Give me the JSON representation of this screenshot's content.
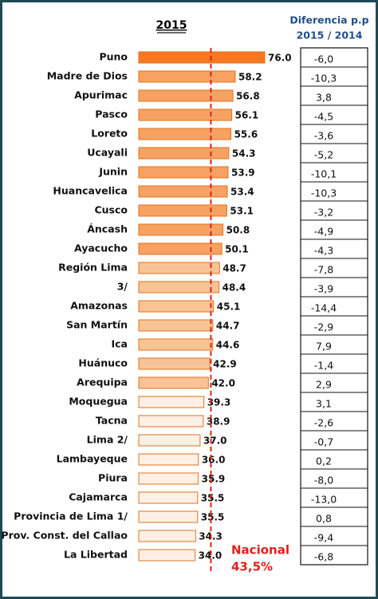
{
  "chart_data": {
    "type": "bar",
    "title": "2015",
    "categories": [
      "Puno",
      "Madre de Dios",
      "Apurimac",
      "Pasco",
      "Loreto",
      "Ucayali",
      "Junin",
      "Huancavelica",
      "Cusco",
      "Áncash",
      "Ayacucho",
      "Región Lima",
      "3/",
      "Amazonas",
      "San Martín",
      "Ica",
      "Huánuco",
      "Arequipa",
      "Moquegua",
      "Tacna",
      "Lima 2/",
      "Lambayeque",
      "Piura",
      "Cajamarca",
      "Provincia de Lima 1/",
      "Prov. Const. del Callao",
      "La Libertad"
    ],
    "values": [
      76.0,
      58.2,
      56.8,
      56.1,
      55.6,
      54.3,
      53.9,
      53.4,
      53.1,
      50.8,
      50.1,
      48.7,
      48.4,
      45.1,
      44.7,
      44.6,
      42.9,
      42.0,
      39.3,
      38.9,
      37.0,
      36.0,
      35.9,
      35.5,
      35.5,
      34.3,
      34.0
    ],
    "value_labels": [
      "76.0",
      "58.2",
      "56.8",
      "56.1",
      "55.6",
      "54.3",
      "53.9",
      "53.4",
      "53.1",
      "50.8",
      "50.1",
      "48.7",
      "48.4",
      "45.1",
      "44.7",
      "44.6",
      "42.9",
      "42.0",
      "39.3",
      "38.9",
      "37.0",
      "36.0",
      "35.9",
      "35.5",
      "35.5",
      "34.3",
      "34.0"
    ],
    "colors": [
      "#f47920",
      "#f7a262",
      "#f7a262",
      "#f7a262",
      "#f7a262",
      "#f7a262",
      "#f7a262",
      "#f7a262",
      "#f7a262",
      "#f7a262",
      "#f7a262",
      "#f9c495",
      "#f9c495",
      "#f9c495",
      "#f9c495",
      "#f9c495",
      "#f9c495",
      "#f9c495",
      "#fef0e4",
      "#fef0e4",
      "#fef0e4",
      "#fef0e4",
      "#fef0e4",
      "#fef0e4",
      "#fef0e4",
      "#fef0e4",
      "#fef0e4"
    ],
    "edge_color": "#e2711d",
    "xlim": [
      0,
      76
    ],
    "reference": {
      "value": 43.5,
      "label": [
        "Nacional",
        "43,5%"
      ],
      "color": "#e0201c"
    },
    "table": {
      "header": [
        "Diferencia p.p",
        "2015 / 2014"
      ],
      "rows": [
        "-6,0",
        "-10,3",
        "3,8",
        "-4,5",
        "-3,6",
        "-5,2",
        "-10,1",
        "-10,3",
        "-3,2",
        "-4,9",
        "-4,3",
        "-7,8",
        "-3,9",
        "-14,4",
        "-2,9",
        "7,9",
        "-1,4",
        "2,9",
        "3,1",
        "-2,6",
        "-0,7",
        "0,2",
        "-8,0",
        "-13,0",
        "0,8",
        "-9,4",
        "-6,8"
      ]
    }
  }
}
